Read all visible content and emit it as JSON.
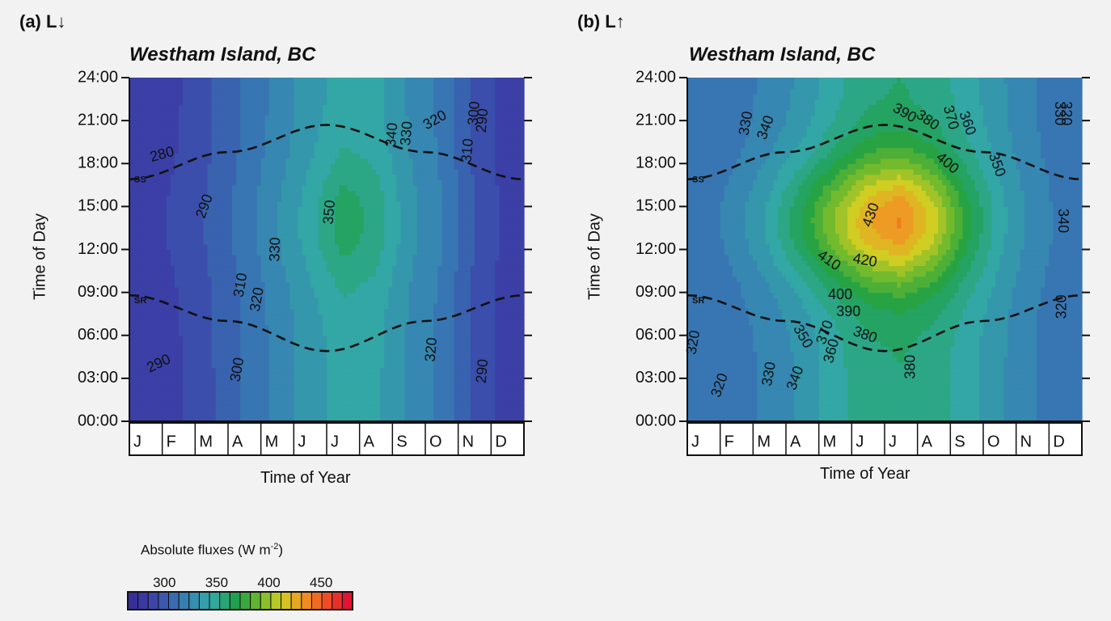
{
  "panels": [
    {
      "label_prefix": "(a) L",
      "label_arrow": "↓",
      "site": "Westham Island, BC",
      "ylabel": "Time of Day",
      "xlabel": "Time of Year"
    },
    {
      "label_prefix": "(b) L",
      "label_arrow": "↑",
      "site": "Westham Island, BC",
      "ylabel": "Time of Day",
      "xlabel": "Time of Year"
    }
  ],
  "legend": {
    "title": "Absolute fluxes (W m",
    "title_sup": "-2",
    "title_end": ")",
    "ticks": [
      300,
      350,
      400,
      450
    ],
    "range": [
      265,
      480
    ],
    "step": 10
  },
  "chart_data": [
    {
      "type": "heatmap",
      "title": "Westham Island, BC",
      "xlabel": "Time of Year",
      "ylabel": "Time of Day",
      "x_categories": [
        "J",
        "F",
        "M",
        "A",
        "M",
        "J",
        "J",
        "A",
        "S",
        "O",
        "N",
        "D"
      ],
      "y_ticks": [
        "00:00",
        "03:00",
        "06:00",
        "09:00",
        "12:00",
        "15:00",
        "18:00",
        "21:00",
        "24:00"
      ],
      "ylim": [
        0,
        24
      ],
      "z_unit": "W m-2",
      "z_field": {
        "months": [
          0.5,
          1.5,
          2.5,
          3.5,
          4.5,
          5.5,
          6.5,
          7.5,
          8.5,
          9.5,
          10.5,
          11.5
        ],
        "monthly_mean": [
          285,
          290,
          300,
          312,
          325,
          338,
          350,
          346,
          330,
          318,
          298,
          285
        ],
        "diurnal_amplitude": [
          2,
          3,
          3,
          4,
          6,
          10,
          22,
          14,
          5,
          3,
          2,
          2
        ]
      },
      "contour_labels": [
        {
          "value": "280",
          "month": 1.0,
          "hour": 18.6,
          "angle": -15
        },
        {
          "value": "290",
          "month": 2.3,
          "hour": 15.0,
          "angle": -70
        },
        {
          "value": "290",
          "month": 0.9,
          "hour": 4.0,
          "angle": -25
        },
        {
          "value": "300",
          "month": 3.3,
          "hour": 3.6,
          "angle": -80
        },
        {
          "value": "310",
          "month": 3.4,
          "hour": 9.5,
          "angle": -80
        },
        {
          "value": "320",
          "month": 3.9,
          "hour": 8.5,
          "angle": -80
        },
        {
          "value": "330",
          "month": 4.45,
          "hour": 12.0,
          "angle": -88
        },
        {
          "value": "350",
          "month": 6.1,
          "hour": 14.6,
          "angle": -85
        },
        {
          "value": "340",
          "month": 8.0,
          "hour": 20.0,
          "angle": -85
        },
        {
          "value": "330",
          "month": 8.45,
          "hour": 20.1,
          "angle": -85
        },
        {
          "value": "320",
          "month": 9.3,
          "hour": 21.0,
          "angle": -30
        },
        {
          "value": "310",
          "month": 10.3,
          "hour": 18.9,
          "angle": -85
        },
        {
          "value": "300",
          "month": 10.5,
          "hour": 21.5,
          "angle": -85
        },
        {
          "value": "290",
          "month": 10.75,
          "hour": 21.0,
          "angle": -85
        },
        {
          "value": "320",
          "month": 9.2,
          "hour": 5.0,
          "angle": -85
        },
        {
          "value": "290",
          "month": 10.75,
          "hour": 3.5,
          "angle": -85
        }
      ],
      "sunset_label": "SS",
      "sunrise_label": "SR",
      "sunrise_hours": [
        8.8,
        7.0,
        4.9,
        7.0,
        8.8
      ],
      "sunset_hours": [
        16.9,
        18.8,
        20.7,
        18.8,
        16.9
      ]
    },
    {
      "type": "heatmap",
      "title": "Westham Island, BC",
      "xlabel": "Time of Year",
      "ylabel": "Time of Day",
      "x_categories": [
        "J",
        "F",
        "M",
        "A",
        "M",
        "J",
        "J",
        "A",
        "S",
        "O",
        "N",
        "D"
      ],
      "y_ticks": [
        "00:00",
        "03:00",
        "06:00",
        "09:00",
        "12:00",
        "15:00",
        "18:00",
        "21:00",
        "24:00"
      ],
      "ylim": [
        0,
        24
      ],
      "z_unit": "W m-2",
      "z_field": {
        "months": [
          0.5,
          1.5,
          2.5,
          3.5,
          4.5,
          5.5,
          6.5,
          7.5,
          8.5,
          9.5,
          10.5,
          11.5
        ],
        "monthly_mean": [
          312,
          318,
          328,
          342,
          360,
          375,
          380,
          370,
          352,
          335,
          322,
          314
        ],
        "diurnal_amplitude": [
          3,
          10,
          20,
          38,
          55,
          72,
          82,
          60,
          30,
          12,
          5,
          3
        ]
      },
      "contour_labels": [
        {
          "value": "330",
          "month": 1.8,
          "hour": 20.8,
          "angle": -80
        },
        {
          "value": "340",
          "month": 2.4,
          "hour": 20.5,
          "angle": -70
        },
        {
          "value": "390",
          "month": 6.6,
          "hour": 21.5,
          "angle": 30
        },
        {
          "value": "380",
          "month": 7.3,
          "hour": 21.0,
          "angle": 35
        },
        {
          "value": "370",
          "month": 8.0,
          "hour": 21.2,
          "angle": 75
        },
        {
          "value": "360",
          "month": 8.5,
          "hour": 20.8,
          "angle": 70
        },
        {
          "value": "400",
          "month": 7.9,
          "hour": 18.0,
          "angle": 40
        },
        {
          "value": "350",
          "month": 9.4,
          "hour": 17.9,
          "angle": 70
        },
        {
          "value": "330",
          "month": 11.3,
          "hour": 21.5,
          "angle": 90
        },
        {
          "value": "320",
          "month": 11.5,
          "hour": 21.5,
          "angle": 90
        },
        {
          "value": "340",
          "month": 11.4,
          "hour": 14.0,
          "angle": 90
        },
        {
          "value": "430",
          "month": 5.6,
          "hour": 14.4,
          "angle": -70
        },
        {
          "value": "410",
          "month": 4.3,
          "hour": 11.2,
          "angle": 35
        },
        {
          "value": "420",
          "month": 5.4,
          "hour": 11.2,
          "angle": 10
        },
        {
          "value": "400",
          "month": 4.65,
          "hour": 8.8,
          "angle": 0
        },
        {
          "value": "390",
          "month": 4.9,
          "hour": 7.6,
          "angle": 0
        },
        {
          "value": "380",
          "month": 5.4,
          "hour": 6.0,
          "angle": 20
        },
        {
          "value": "370",
          "month": 4.2,
          "hour": 6.2,
          "angle": -70
        },
        {
          "value": "360",
          "month": 4.4,
          "hour": 4.9,
          "angle": -75
        },
        {
          "value": "350",
          "month": 3.5,
          "hour": 5.9,
          "angle": 60
        },
        {
          "value": "380",
          "month": 6.8,
          "hour": 3.8,
          "angle": -90
        },
        {
          "value": "340",
          "month": 3.3,
          "hour": 3.0,
          "angle": -70
        },
        {
          "value": "330",
          "month": 2.5,
          "hour": 3.3,
          "angle": -80
        },
        {
          "value": "320",
          "month": 1.0,
          "hour": 2.5,
          "angle": -70
        },
        {
          "value": "320",
          "month": 0.2,
          "hour": 5.5,
          "angle": -80
        },
        {
          "value": "320",
          "month": 11.4,
          "hour": 8.0,
          "angle": -90
        }
      ],
      "sunset_label": "SS",
      "sunrise_label": "SR",
      "sunrise_hours": [
        8.8,
        7.0,
        4.9,
        7.0,
        8.8
      ],
      "sunset_hours": [
        16.9,
        18.8,
        20.7,
        18.8,
        16.9
      ]
    }
  ]
}
